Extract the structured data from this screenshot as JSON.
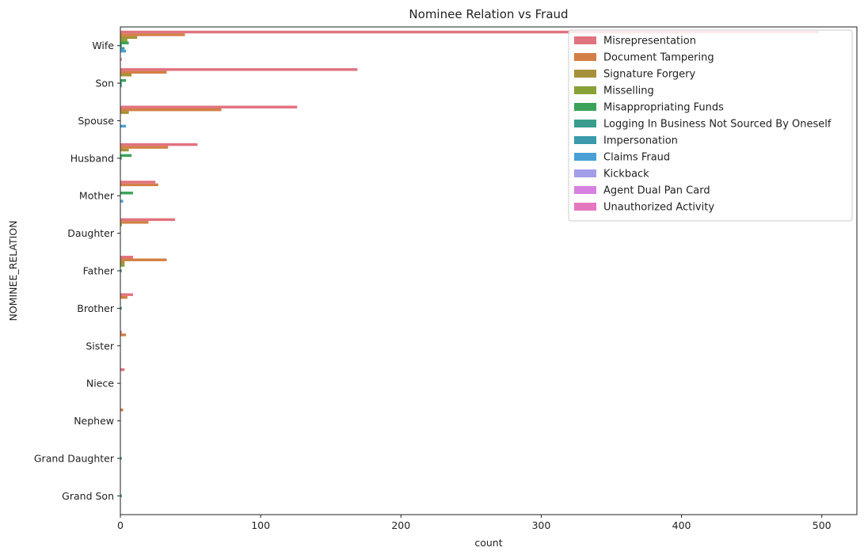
{
  "chart_data": {
    "type": "bar",
    "orientation": "horizontal",
    "title": "Nominee Relation vs Fraud",
    "xlabel": "count",
    "ylabel": "NOMINEE_RELATION",
    "xlim": [
      0,
      525
    ],
    "xticks": [
      0,
      100,
      200,
      300,
      400,
      500
    ],
    "legend_position": "top-right",
    "categories": [
      "Wife",
      "Son",
      "Spouse",
      "Husband",
      "Mother",
      "Daughter",
      "Father",
      "Brother",
      "Sister",
      "Niece",
      "Nephew",
      "Grand Daughter",
      "Grand Son"
    ],
    "series": [
      {
        "name": "Misrepresentation",
        "color": "#e1727f",
        "values": [
          498,
          169,
          126,
          55,
          25,
          39,
          9,
          9,
          1,
          3,
          0,
          0,
          0
        ]
      },
      {
        "name": "Document Tampering",
        "color": "#d27f45",
        "values": [
          46,
          33,
          72,
          34,
          27,
          20,
          33,
          5,
          4,
          0,
          2,
          0,
          0
        ]
      },
      {
        "name": "Signature Forgery",
        "color": "#a69039",
        "values": [
          12,
          8,
          6,
          6,
          0,
          1,
          3,
          0,
          0,
          0,
          0,
          0,
          0
        ]
      },
      {
        "name": "Misselling",
        "color": "#87a136",
        "values": [
          5,
          0,
          0,
          0,
          0,
          0,
          3,
          0,
          0,
          0,
          0,
          0,
          0
        ]
      },
      {
        "name": "Misappropriating Funds",
        "color": "#3aa35a",
        "values": [
          6,
          4,
          0,
          8,
          9,
          0,
          0,
          0,
          0,
          0,
          0,
          0,
          0
        ]
      },
      {
        "name": "Logging In Business Not Sourced By Oneself",
        "color": "#3a9d8d",
        "values": [
          1,
          1,
          0,
          1,
          0,
          0,
          1,
          1,
          0,
          0,
          0,
          1,
          1
        ]
      },
      {
        "name": "Impersonation",
        "color": "#3b9aab",
        "values": [
          3,
          1,
          0,
          0,
          0,
          0,
          0,
          0,
          0,
          0,
          0,
          0,
          0
        ]
      },
      {
        "name": "Claims Fraud",
        "color": "#4aa0d4",
        "values": [
          4,
          0,
          4,
          0,
          2,
          0,
          0,
          0,
          0,
          0,
          0,
          0,
          0
        ]
      },
      {
        "name": "Kickback",
        "color": "#a39ee8",
        "values": [
          0,
          0,
          0,
          0,
          0,
          0,
          0,
          0,
          0,
          0,
          0,
          0,
          0
        ]
      },
      {
        "name": "Agent Dual Pan Card",
        "color": "#d681e1",
        "values": [
          0,
          0,
          0,
          0,
          0,
          0,
          0,
          0,
          0,
          0,
          0,
          0,
          0
        ]
      },
      {
        "name": "Unauthorized Activity",
        "color": "#e477c0",
        "values": [
          1,
          0,
          0,
          0,
          0,
          0,
          0,
          0,
          0,
          0,
          0,
          0,
          0
        ]
      }
    ]
  }
}
